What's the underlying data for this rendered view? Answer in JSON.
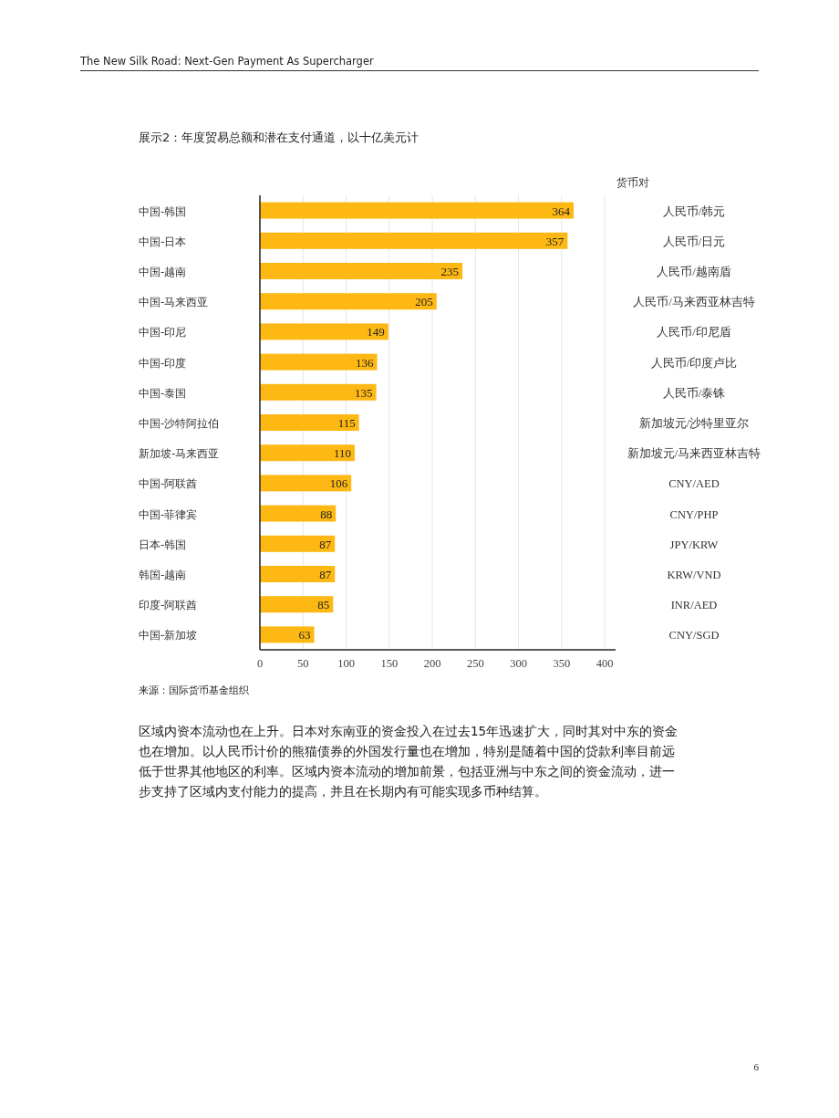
{
  "chart_data": {
    "type": "bar",
    "orientation": "horizontal",
    "title": "展示2：年度贸易总额和潜在支付通道，以十亿美元计",
    "categories": [
      "中国-韩国",
      "中国-日本",
      "中国-越南",
      "中国-马来西亚",
      "中国-印尼",
      "中国-印度",
      "中国-泰国",
      "中国-沙特阿拉伯",
      "新加坡-马来西亚",
      "中国-阿联酋",
      "中国-菲律宾",
      "日本-韩国",
      "韩国-越南",
      "印度-阿联酋",
      "中国-新加坡"
    ],
    "y2label": "货币对",
    "y2_categories": [
      "人民币/韩元",
      "人民币/日元",
      "人民币/越南盾",
      "人民币/马来西亚林吉特",
      "人民币/印尼盾",
      "人民币/印度卢比",
      "人民币/泰铢",
      "新加坡元/沙特里亚尔",
      "新加坡元/马来西亚林吉特",
      "CNY/AED",
      "CNY/PHP",
      "JPY/KRW",
      "KRW/VND",
      "INR/AED",
      "CNY/SGD"
    ],
    "values": [
      364,
      357,
      235,
      205,
      149,
      136,
      135,
      115,
      110,
      106,
      88,
      87,
      87,
      85,
      63
    ],
    "color": "#fdb813",
    "xlim": [
      0,
      400
    ],
    "xticks": [
      0,
      50,
      100,
      150,
      200,
      250,
      300,
      350,
      400
    ],
    "grid": "x",
    "data_labels": true,
    "annotations": [
      "The New Silk Road: Next-Gen Payment As Supercharger",
      "来源：国际货币基金组织",
      "区域内资本流动也在上升。日本对东南亚的资金投入在过去15年迅速扩大，同时其对中东的资金也在增加。以人民币计价的熊猫债券的外国发行量也在增加，特别是随着中国的贷款利率目前远低于世界其他地区的利率。区域内资本流动的增加前景，包括亚洲与中东之间的资金流动，进一步支持了区域内支付能力的提高，并且在长期内有可能实现多币种结算。",
      "6"
    ]
  }
}
